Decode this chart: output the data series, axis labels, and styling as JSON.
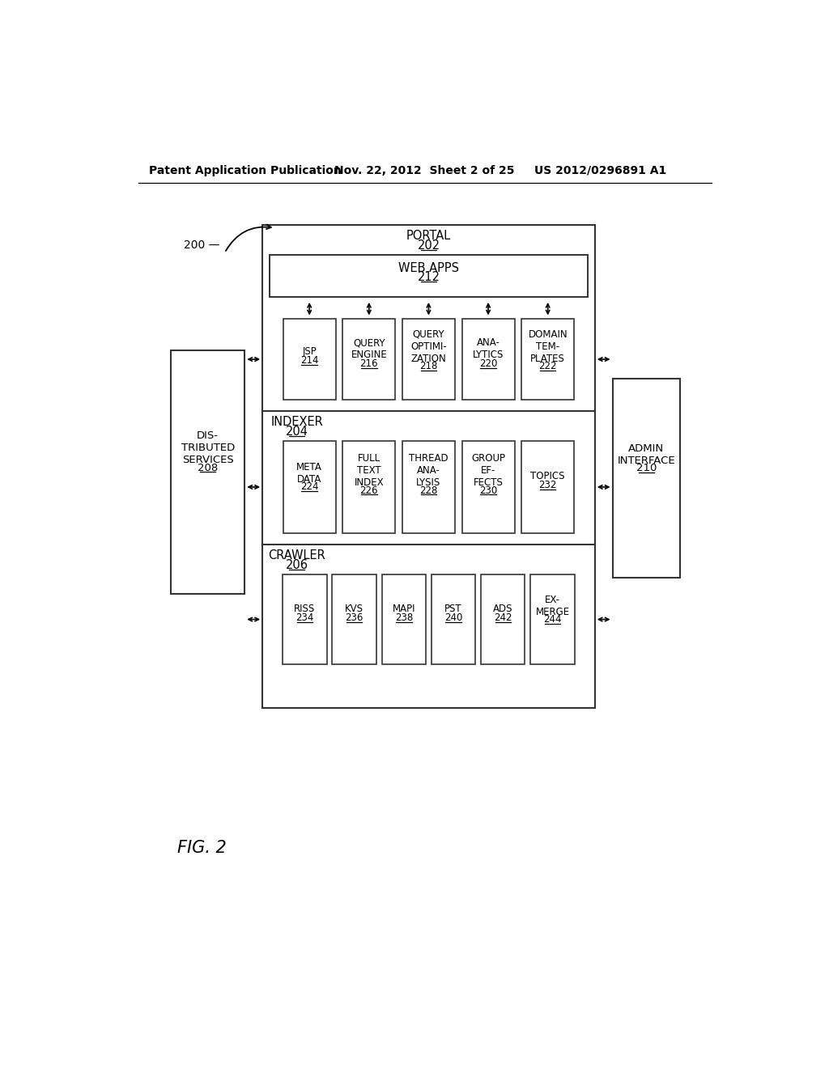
{
  "bg_color": "#ffffff",
  "header_text": "Patent Application Publication",
  "header_date": "Nov. 22, 2012  Sheet 2 of 25",
  "header_patent": "US 2012/0296891 A1",
  "fig_label": "FIG. 2",
  "ref_200": "200",
  "portal_label": "PORTAL",
  "portal_num": "202",
  "webapps_label": "WEB APPS",
  "webapps_num": "212",
  "indexer_label": "INDEXER",
  "indexer_num": "204",
  "crawler_label": "CRAWLER",
  "crawler_num": "206",
  "dist_label": "DIS-\nTRIBUTED\nSERVICES",
  "dist_num": "208",
  "admin_label": "ADMIN\nINTERFACE",
  "admin_num": "210",
  "portal_boxes": [
    {
      "label": "JSP",
      "num": "214"
    },
    {
      "label": "QUERY\nENGINE",
      "num": "216"
    },
    {
      "label": "QUERY\nOPTIMI-\nZATION",
      "num": "218"
    },
    {
      "label": "ANA-\nLYTICS",
      "num": "220"
    },
    {
      "label": "DOMAIN\nTEM-\nPLATES",
      "num": "222"
    }
  ],
  "indexer_boxes": [
    {
      "label": "META\nDATA",
      "num": "224"
    },
    {
      "label": "FULL\nTEXT\nINDEX",
      "num": "226"
    },
    {
      "label": "THREAD\nANA-\nLYSIS",
      "num": "228"
    },
    {
      "label": "GROUP\nEF-\nFECTS",
      "num": "230"
    },
    {
      "label": "TOPICS",
      "num": "232"
    }
  ],
  "crawler_boxes": [
    {
      "label": "RISS",
      "num": "234"
    },
    {
      "label": "KVS",
      "num": "236"
    },
    {
      "label": "MAPI",
      "num": "238"
    },
    {
      "label": "PST",
      "num": "240"
    },
    {
      "label": "ADS",
      "num": "242"
    },
    {
      "label": "EX-\nMERGE",
      "num": "244"
    }
  ]
}
